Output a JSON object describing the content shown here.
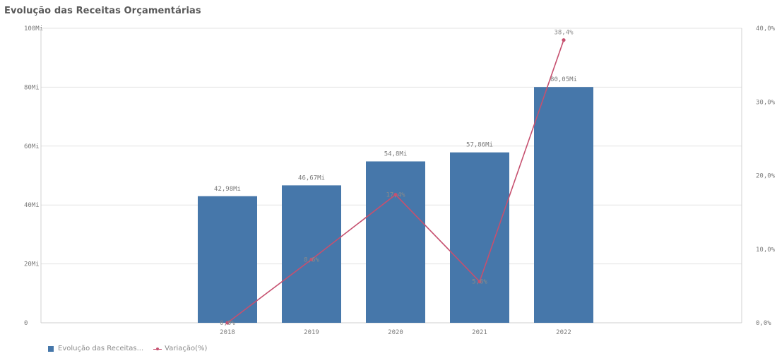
{
  "chart_data": {
    "type": "bar",
    "title": "Evolução das Receitas Orçamentárias",
    "categories": [
      "2018",
      "2019",
      "2020",
      "2021",
      "2022"
    ],
    "y_axis_left": {
      "ticks": [
        "0",
        "20Mi",
        "40Mi",
        "60Mi",
        "80Mi",
        "100Mi"
      ],
      "ylim": [
        0,
        100
      ]
    },
    "y_axis_right": {
      "ticks": [
        "0,0%",
        "10,0%",
        "20,0%",
        "30,0%",
        "40,0%"
      ],
      "ylim": [
        0,
        40
      ]
    },
    "series": [
      {
        "name": "Evolução das Receitas...",
        "type": "bar",
        "axis": "left",
        "values": [
          42.98,
          46.67,
          54.8,
          57.86,
          80.05
        ],
        "labels": [
          "42,98Mi",
          "46,67Mi",
          "54,8Mi",
          "57,86Mi",
          "80,05Mi"
        ],
        "color": "#4677aa"
      },
      {
        "name": "Variação(%)",
        "type": "line",
        "axis": "right",
        "values": [
          0.0,
          8.6,
          17.4,
          5.6,
          38.4
        ],
        "labels": [
          "0,0%",
          "8,6%",
          "17,4%",
          "5,6%",
          "38,4%"
        ],
        "color": "#c6506f"
      }
    ],
    "grid": true,
    "legend": "bottom-left"
  }
}
